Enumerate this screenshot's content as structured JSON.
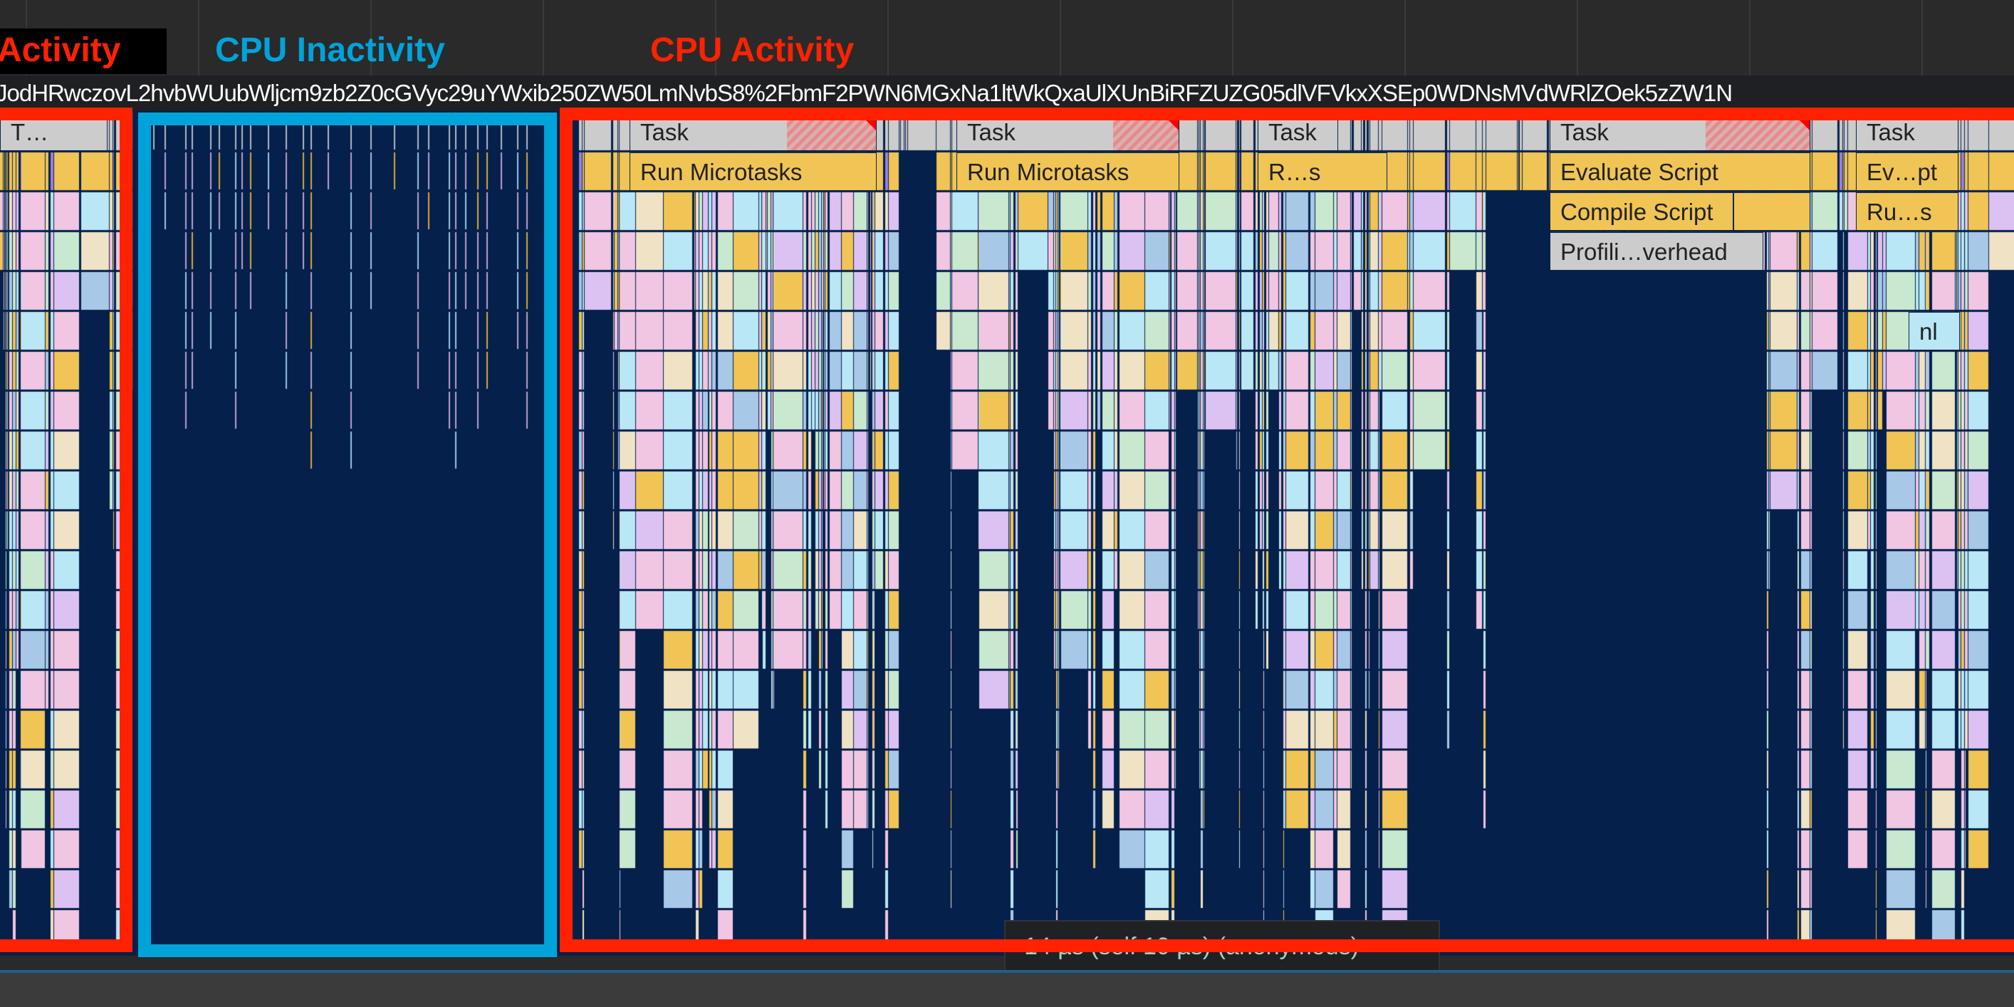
{
  "annotations": {
    "left_label": "Activity",
    "middle_label": "CPU Inactivity",
    "right_label": "CPU Activity",
    "activity_color": "#ff2200",
    "inactivity_color": "#00a3d9"
  },
  "url_track": {
    "text": "JodHRwczovL2hvbWUubWljcm9zb2Z0cGVyc29uYWxib250ZW50LmNvbS8%2FbmF2PWN6MGxNa1ltWkQxaUlXUnBiRFZUZG05dlVFVkxXSEp0WDNsMVdWRlZOek5zZW1N"
  },
  "flame_chart": {
    "colors": {
      "background": "#05204a",
      "task": "#cccccc",
      "scripting": "#f0c555",
      "function_pink": "#f0c6e2",
      "function_lavender": "#dcc2f2",
      "function_blue": "#b9e7f6",
      "function_cream": "#f0e2c4",
      "gc_purple": "#9c80e2"
    },
    "blocks": [
      {
        "label": "T…",
        "kind": "task"
      },
      {
        "label": "Task",
        "kind": "task",
        "long_task": true
      },
      {
        "label": "Task",
        "kind": "task",
        "long_task": true
      },
      {
        "label": "Task",
        "kind": "task"
      },
      {
        "label": "Task",
        "kind": "task",
        "long_task": true
      },
      {
        "label": "Task",
        "kind": "task"
      },
      {
        "label": "Run Microtasks",
        "kind": "scripting"
      },
      {
        "label": "Run Microtasks",
        "kind": "scripting"
      },
      {
        "label": "R…s",
        "kind": "scripting"
      },
      {
        "label": "Evaluate Script",
        "kind": "scripting"
      },
      {
        "label": "Ev…pt",
        "kind": "scripting"
      },
      {
        "label": "Compile Script",
        "kind": "scripting"
      },
      {
        "label": "Ru…s",
        "kind": "scripting"
      },
      {
        "label": "Profili…verhead",
        "kind": "task"
      },
      {
        "label": "nl",
        "kind": "function_blue"
      }
    ]
  },
  "tooltip": {
    "text": "14 µs (self 10 µs) (anonymous)"
  }
}
